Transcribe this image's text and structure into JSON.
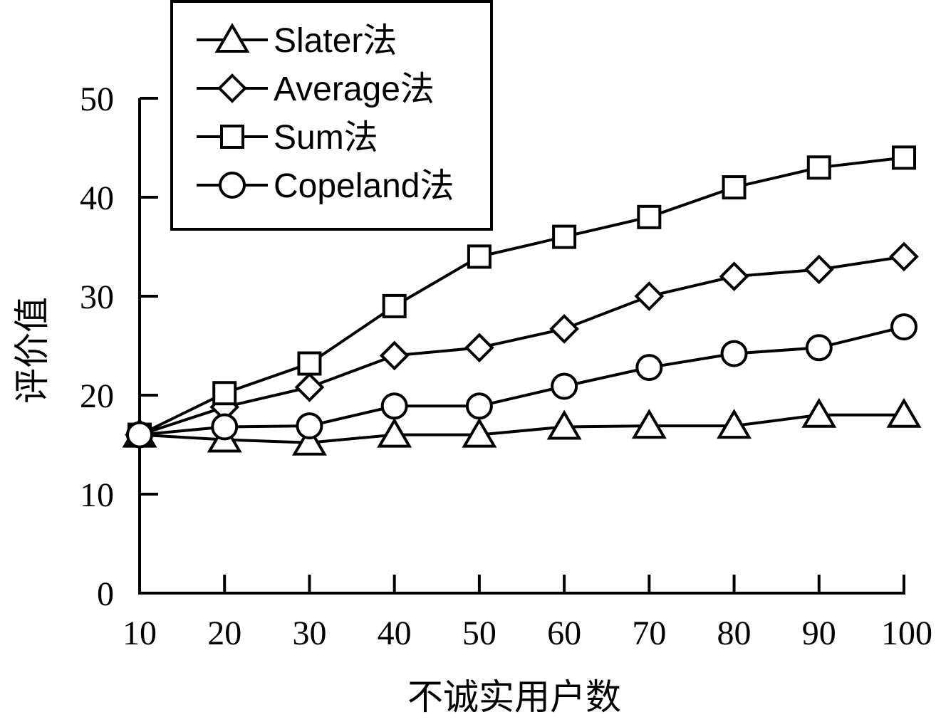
{
  "chart_data": {
    "type": "line",
    "x": [
      10,
      20,
      30,
      40,
      50,
      60,
      70,
      80,
      90,
      100
    ],
    "xlabel": "不诚实用户数",
    "ylabel": "评价值",
    "ylim": [
      0,
      50
    ],
    "yticks": [
      0,
      10,
      20,
      30,
      40,
      50
    ],
    "grid": false,
    "legend_position": "top-left",
    "series": [
      {
        "name": "Slater法",
        "marker": "triangle",
        "values": [
          16,
          15.5,
          15.2,
          16,
          16,
          16.8,
          16.9,
          16.9,
          18,
          18
        ]
      },
      {
        "name": "Average法",
        "marker": "diamond",
        "values": [
          16,
          18.8,
          20.8,
          24,
          24.8,
          26.7,
          30,
          32,
          32.7,
          34
        ]
      },
      {
        "name": "Sum法",
        "marker": "square",
        "values": [
          16,
          20.2,
          23.2,
          29,
          34,
          36,
          38,
          41,
          43,
          44
        ]
      },
      {
        "name": "Copeland法",
        "marker": "circle",
        "values": [
          16,
          16.8,
          16.9,
          18.9,
          18.9,
          20.9,
          22.8,
          24.2,
          24.8,
          26.9
        ]
      }
    ]
  }
}
